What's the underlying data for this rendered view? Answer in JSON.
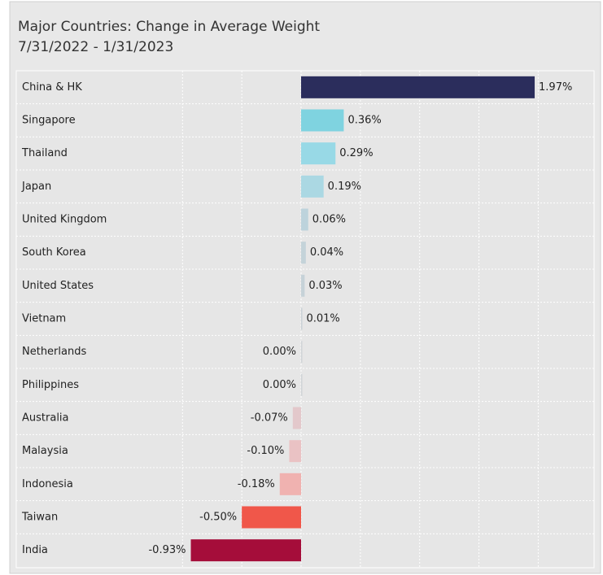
{
  "chart_data": {
    "type": "barh",
    "title": "Major Countries:  Change in Average Weight",
    "subtitle": "7/31/2022 - 1/31/2023",
    "categories": [
      "China & HK",
      "Singapore",
      "Thailand",
      "Japan",
      "United Kingdom",
      "South Korea",
      "United States",
      "Vietnam",
      "Netherlands",
      "Philippines",
      "Australia",
      "Malaysia",
      "Indonesia",
      "Taiwan",
      "India"
    ],
    "values": [
      1.97,
      0.36,
      0.29,
      0.19,
      0.06,
      0.04,
      0.03,
      0.01,
      0,
      0,
      -0.07,
      -0.1,
      -0.18,
      -0.5,
      -0.93
    ],
    "value_labels": [
      "1.97%",
      "0.36%",
      "0.29%",
      "0.19%",
      "0.06%",
      "0.04%",
      "0.03%",
      "0.01%",
      "0.00%",
      "0.00%",
      "-0.07%",
      "-0.10%",
      "-0.18%",
      "-0.50%",
      "-0.93%"
    ],
    "colors": [
      "#2b2d5c",
      "#7fd3e0",
      "#98d9e6",
      "#abd8e3",
      "#bdd3dc",
      "#c4d3d9",
      "#c6d2d8",
      "#cad1d6",
      "#d0d4d7",
      "#d0d4d7",
      "#e3c8cb",
      "#eac2c4",
      "#f0b2b0",
      "#f0574a",
      "#a50d3a"
    ],
    "xlim": [
      -1,
      2
    ],
    "xticks": [
      -1,
      -0.5,
      0,
      0.5,
      1,
      1.5,
      2
    ],
    "grid": true
  }
}
